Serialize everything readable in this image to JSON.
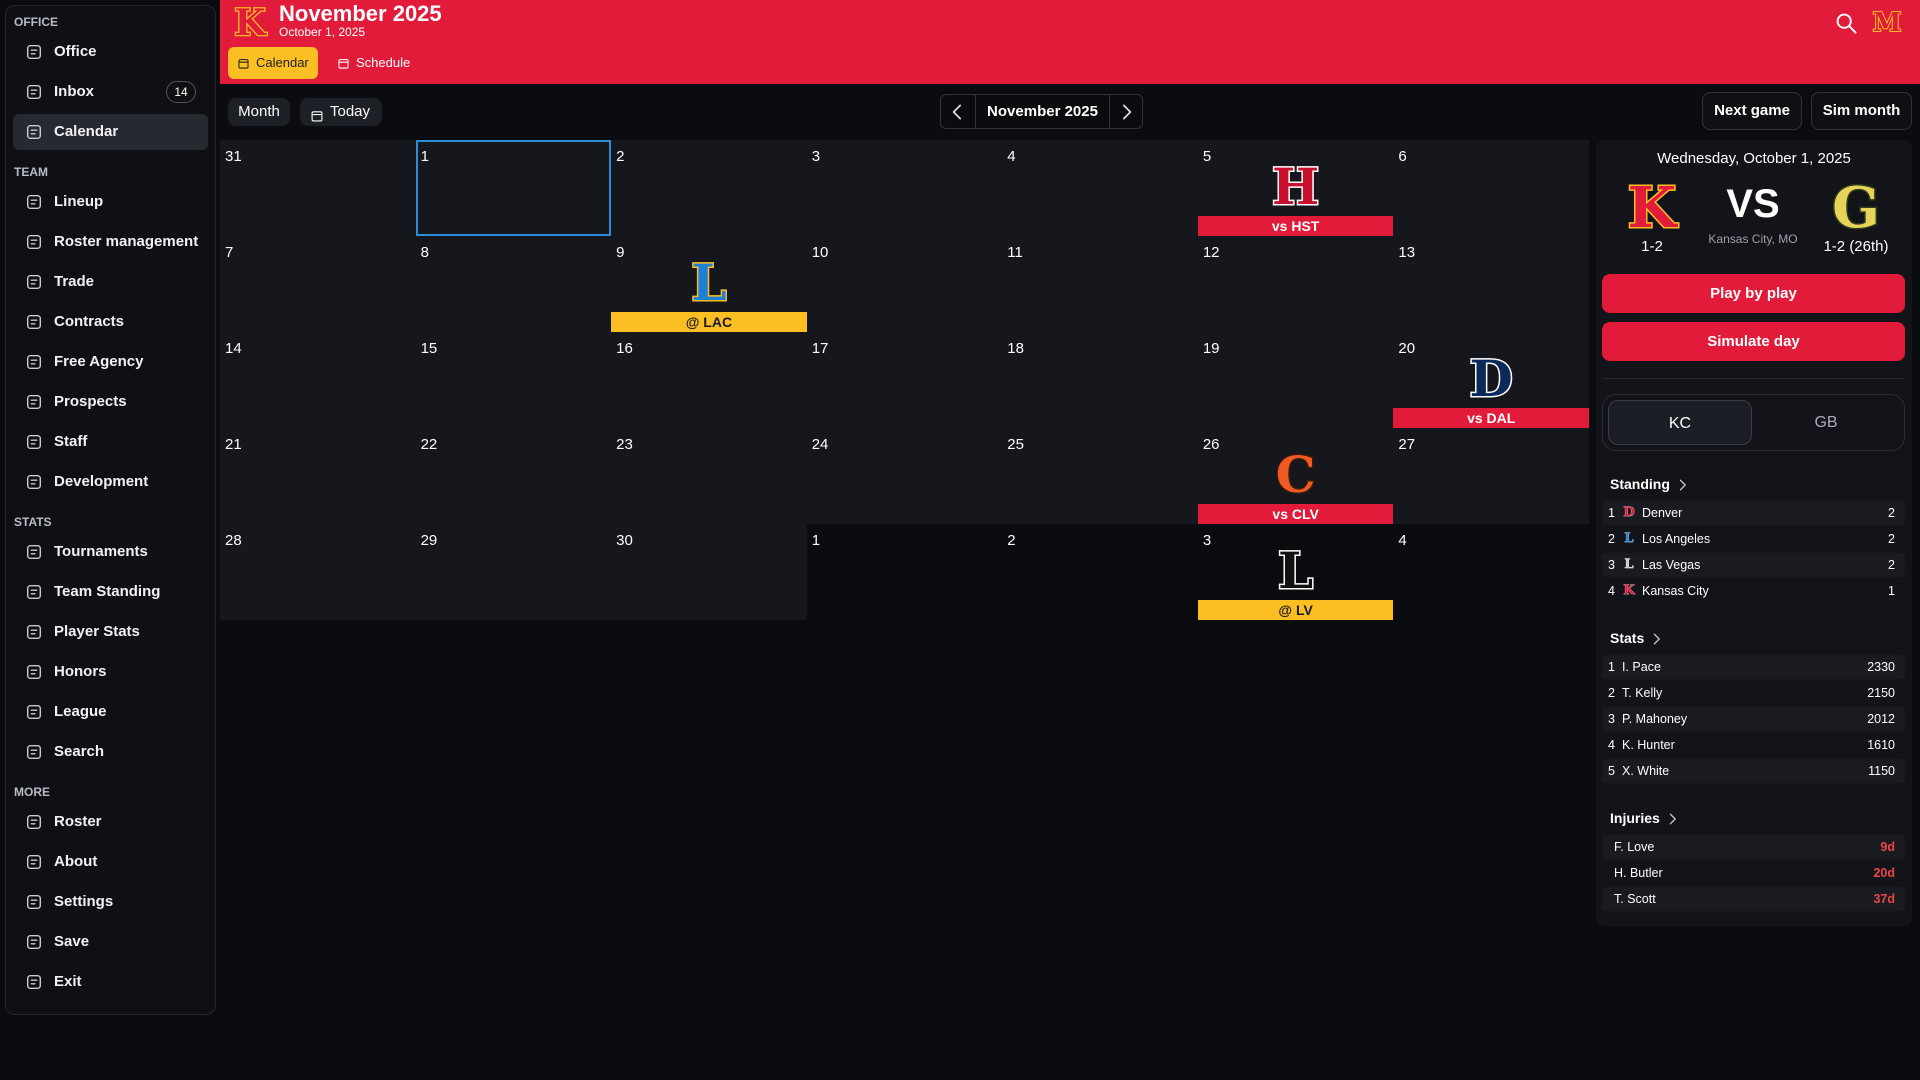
{
  "sidebar": {
    "sections": [
      {
        "title": "OFFICE",
        "items": [
          {
            "label": "Office"
          },
          {
            "label": "Inbox",
            "badge": 14
          },
          {
            "label": "Calendar",
            "active": true
          }
        ]
      },
      {
        "title": "TEAM",
        "items": [
          {
            "label": "Lineup"
          },
          {
            "label": "Roster management"
          },
          {
            "label": "Trade"
          },
          {
            "label": "Contracts"
          },
          {
            "label": "Free Agency"
          },
          {
            "label": "Prospects"
          },
          {
            "label": "Staff"
          },
          {
            "label": "Development"
          }
        ]
      },
      {
        "title": "STATS",
        "items": [
          {
            "label": "Tournaments"
          },
          {
            "label": "Team Standing"
          },
          {
            "label": "Player Stats"
          },
          {
            "label": "Honors"
          },
          {
            "label": "League"
          },
          {
            "label": "Search"
          }
        ]
      },
      {
        "title": "MORE",
        "items": [
          {
            "label": "Roster"
          },
          {
            "label": "About"
          },
          {
            "label": "Settings"
          },
          {
            "label": "Save"
          },
          {
            "label": "Exit"
          }
        ]
      }
    ]
  },
  "header": {
    "logo": "K",
    "title": "November 2025",
    "date": "October 1, 2025",
    "tabs": [
      {
        "label": "Calendar",
        "active": true
      },
      {
        "label": "Schedule"
      }
    ],
    "user_logo": "M"
  },
  "toolbar": {
    "month": "Month",
    "today": "Today",
    "current": "November 2025",
    "next_game": "Next game",
    "sim_month": "Sim month"
  },
  "calendar": {
    "weeks": [
      [
        {
          "day": 31
        },
        {
          "day": 1,
          "selected": true
        },
        {
          "day": 2
        },
        {
          "day": 3
        },
        {
          "day": 4
        },
        {
          "day": 5,
          "game": {
            "logo": "H",
            "logo_color": "#c8102e",
            "outline": "#ffffff",
            "label": "vs HST",
            "bar": "#e31b3b",
            "text_color": "#ffffff"
          }
        },
        {
          "day": 6
        }
      ],
      [
        {
          "day": 7
        },
        {
          "day": 8
        },
        {
          "day": 9,
          "game": {
            "logo": "L",
            "logo_color": "#1e7fd6",
            "outline": "#fbbf24",
            "label": "@ LAC",
            "bar": "#fbbf24",
            "text_color": "#1a1a1a"
          }
        },
        {
          "day": 10
        },
        {
          "day": 11
        },
        {
          "day": 12
        },
        {
          "day": 13
        }
      ],
      [
        {
          "day": 14
        },
        {
          "day": 15
        },
        {
          "day": 16
        },
        {
          "day": 17
        },
        {
          "day": 18
        },
        {
          "day": 19
        },
        {
          "day": 20,
          "game": {
            "logo": "D",
            "logo_color": "#0b2a5b",
            "outline": "#ffffff",
            "label": "vs DAL",
            "bar": "#e31b3b",
            "text_color": "#ffffff"
          }
        }
      ],
      [
        {
          "day": 21
        },
        {
          "day": 22
        },
        {
          "day": 23
        },
        {
          "day": 24
        },
        {
          "day": 25
        },
        {
          "day": 26,
          "game": {
            "logo": "C",
            "logo_color": "#f15a22",
            "outline": "#3a1a0a",
            "label": "vs CLV",
            "bar": "#e31b3b",
            "text_color": "#ffffff"
          }
        },
        {
          "day": 27
        }
      ],
      [
        {
          "day": 28
        },
        {
          "day": 29
        },
        {
          "day": 30
        },
        {
          "day": 1,
          "muted": true
        },
        {
          "day": 2,
          "muted": true
        },
        {
          "day": 3,
          "muted": true,
          "game": {
            "logo": "L",
            "logo_color": "#111111",
            "outline": "#ffffff",
            "label": "@ LV",
            "bar": "#fbbf24",
            "text_color": "#1a1a1a"
          }
        },
        {
          "day": 4,
          "muted": true
        }
      ]
    ]
  },
  "panel": {
    "date": "Wednesday, October 1, 2025",
    "home": {
      "logo": "K",
      "logo_color": "#e31b3b",
      "outline": "#fbbf24",
      "record": "1-2"
    },
    "vs": "VS",
    "location": "Kansas City, MO",
    "away": {
      "logo": "G",
      "logo_color": "#e8d35a",
      "outline": "#2f3d1a",
      "record": "1-2 (26th)"
    },
    "buttons": [
      "Play by play",
      "Simulate day"
    ],
    "toggle": [
      {
        "label": "KC",
        "active": true
      },
      {
        "label": "GB"
      }
    ],
    "standing": {
      "title": "Standing",
      "rows": [
        {
          "rank": 1,
          "logo": "D",
          "logo_color": "#e31b3b",
          "team": "Denver",
          "value": 2
        },
        {
          "rank": 2,
          "logo": "L",
          "logo_color": "#1e7fd6",
          "team": "Los Angeles",
          "value": 2
        },
        {
          "rank": 3,
          "logo": "L",
          "logo_color": "#cccccc",
          "team": "Las Vegas",
          "value": 2
        },
        {
          "rank": 4,
          "logo": "K",
          "logo_color": "#e31b3b",
          "team": "Kansas City",
          "value": 1
        }
      ]
    },
    "stats": {
      "title": "Stats",
      "rows": [
        {
          "rank": 1,
          "name": "I. Pace",
          "value": 2330
        },
        {
          "rank": 2,
          "name": "T. Kelly",
          "value": 2150
        },
        {
          "rank": 3,
          "name": "P. Mahoney",
          "value": 2012
        },
        {
          "rank": 4,
          "name": "K. Hunter",
          "value": 1610
        },
        {
          "rank": 5,
          "name": "X. White",
          "value": 1150
        }
      ]
    },
    "injuries": {
      "title": "Injuries",
      "rows": [
        {
          "name": "F. Love",
          "days": "9d"
        },
        {
          "name": "H. Butler",
          "days": "20d"
        },
        {
          "name": "T. Scott",
          "days": "37d"
        }
      ]
    }
  }
}
